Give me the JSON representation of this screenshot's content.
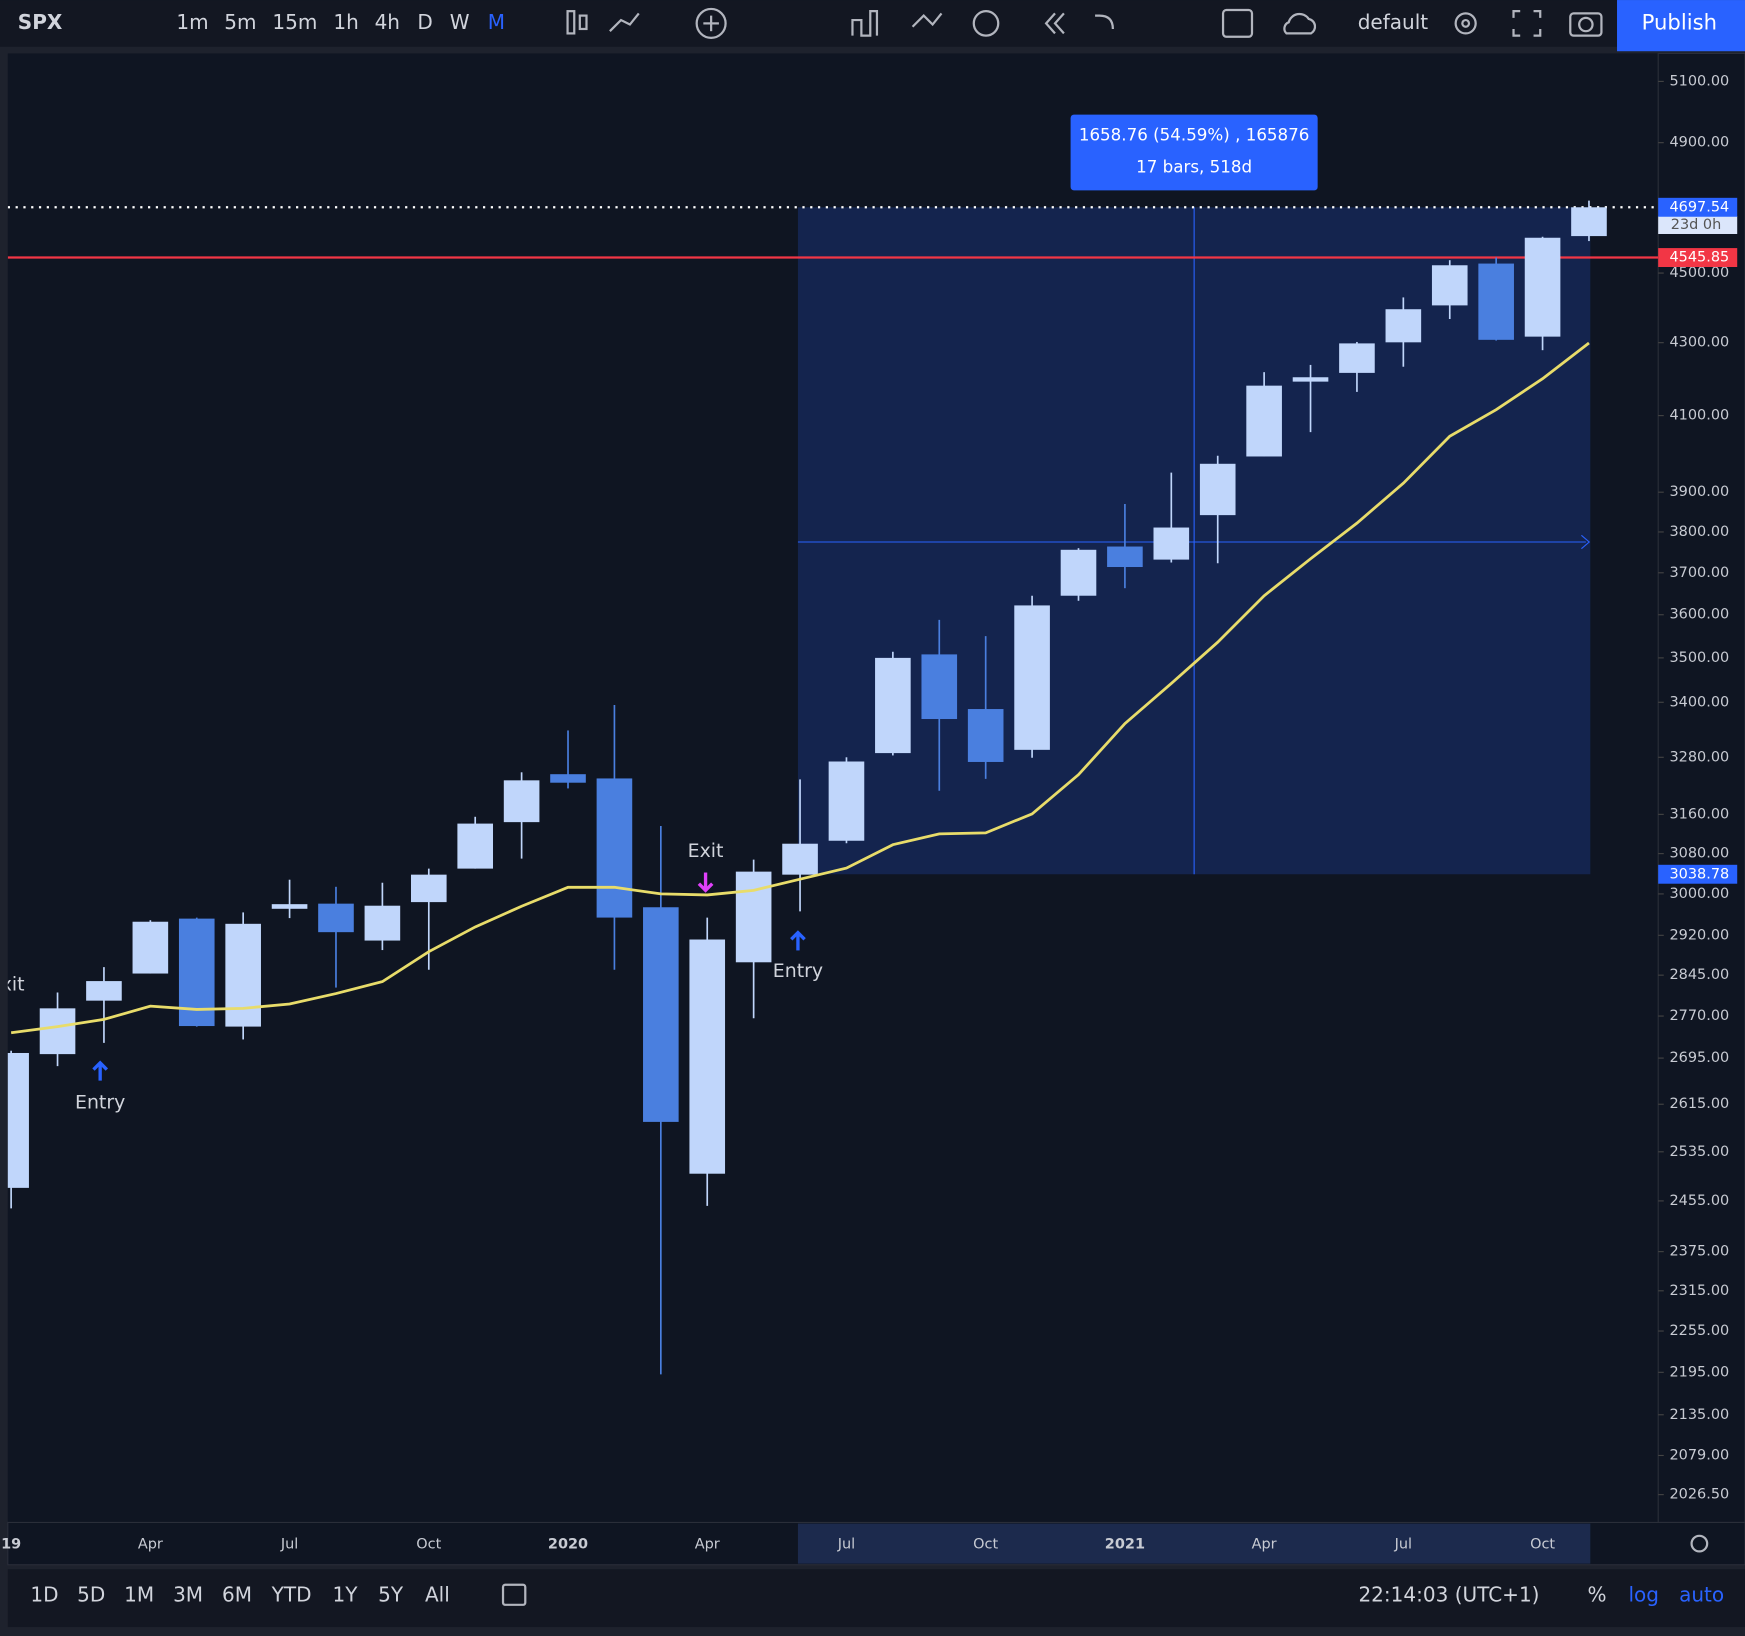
{
  "toolbar": {
    "symbol": "SPX",
    "intervals": [
      "1m",
      "5m",
      "15m",
      "1h",
      "4h",
      "D",
      "W",
      "M"
    ],
    "layout": "default",
    "publish": "Publish"
  },
  "bottom_bar": {
    "ranges": [
      "1D",
      "5D",
      "1M",
      "3M",
      "6M",
      "YTD",
      "1Y",
      "5Y",
      "All"
    ],
    "clock": "22:14:03 (UTC+1)",
    "percent": "%",
    "log": "log",
    "auto": "auto"
  },
  "chart_data": {
    "type": "candlestick",
    "log_scale": true,
    "up_color": "#c0d6fb",
    "down_color": "#4a7fdf",
    "categories": [
      "19",
      null,
      null,
      "Apr",
      null,
      null,
      "Jul",
      null,
      null,
      "Oct",
      null,
      null,
      "2020",
      null,
      null,
      "Apr",
      null,
      null,
      "Jul",
      null,
      null,
      "Oct",
      null,
      null,
      "2021",
      null,
      null,
      "Apr",
      null,
      null,
      "Jul",
      null,
      null,
      "Oct",
      null
    ],
    "open": [
      2476,
      2702,
      2798,
      2848,
      2952,
      2751,
      2971,
      2981,
      2910,
      2984,
      3050,
      3144,
      3244,
      3235,
      2974,
      2499,
      2869,
      3038,
      3106,
      3289,
      3508,
      3385,
      3296,
      3645,
      3764,
      3732,
      3842,
      3992,
      4192,
      4216,
      4301,
      4406,
      4528,
      4317,
      4610
    ],
    "high": [
      2708,
      2813,
      2860,
      2949,
      2954,
      2964,
      3028,
      3014,
      3022,
      3050,
      3155,
      3248,
      3338,
      3394,
      3136,
      2954,
      3068,
      3233,
      3280,
      3514,
      3588,
      3550,
      3645,
      3760,
      3870,
      3950,
      3994,
      4218,
      4238,
      4302,
      4429,
      4538,
      4546,
      4608,
      4718
    ],
    "low": [
      2443,
      2681,
      2722,
      2848,
      2751,
      2728,
      2953,
      2822,
      2892,
      2855,
      3050,
      3070,
      3214,
      2855,
      2192,
      2447,
      2766,
      2966,
      3101,
      3284,
      3209,
      3234,
      3279,
      3633,
      3663,
      3725,
      3723,
      3992,
      4056,
      4164,
      4233,
      4367,
      4306,
      4279,
      4595
    ],
    "close": [
      2704,
      2784,
      2834,
      2946,
      2752,
      2942,
      2980,
      2926,
      2977,
      3038,
      3141,
      3231,
      3226,
      2954,
      2585,
      2912,
      3044,
      3100,
      3271,
      3500,
      3363,
      3270,
      3622,
      3756,
      3714,
      3811,
      3973,
      4181,
      4204,
      4298,
      4395,
      4523,
      4308,
      4605,
      4697.54
    ],
    "ma": {
      "color": "#e8dc6a",
      "values": [
        2740,
        2751,
        2764,
        2788,
        2782,
        2784,
        2792,
        2811,
        2833,
        2889,
        2936,
        2976,
        3013,
        3013,
        3000,
        2998,
        3007,
        3029,
        3051,
        3098,
        3120,
        3122,
        3161,
        3243,
        3353,
        3442,
        3536,
        3645,
        3734,
        3822,
        3923,
        4045,
        4116,
        4200,
        4299
      ]
    },
    "ylim": [
      1990,
      5194
    ],
    "yticks": [
      {
        "value": 5100,
        "label": "5100.00"
      },
      {
        "value": 4900,
        "label": "4900.00"
      },
      {
        "value": 4500,
        "label": "4500.00"
      },
      {
        "value": 4300,
        "label": "4300.00"
      },
      {
        "value": 4100,
        "label": "4100.00"
      },
      {
        "value": 3900,
        "label": "3900.00"
      },
      {
        "value": 3800,
        "label": "3800.00"
      },
      {
        "value": 3700,
        "label": "3700.00"
      },
      {
        "value": 3600,
        "label": "3600.00"
      },
      {
        "value": 3500,
        "label": "3500.00"
      },
      {
        "value": 3400,
        "label": "3400.00"
      },
      {
        "value": 3280,
        "label": "3280.00"
      },
      {
        "value": 3160,
        "label": "3160.00"
      },
      {
        "value": 3080,
        "label": "3080.00"
      },
      {
        "value": 3000,
        "label": "3000.00"
      },
      {
        "value": 2920,
        "label": "2920.00"
      },
      {
        "value": 2845,
        "label": "2845.00"
      },
      {
        "value": 2770,
        "label": "2770.00"
      },
      {
        "value": 2695,
        "label": "2695.00"
      },
      {
        "value": 2615,
        "label": "2615.00"
      },
      {
        "value": 2535,
        "label": "2535.00"
      },
      {
        "value": 2455,
        "label": "2455.00"
      },
      {
        "value": 2375,
        "label": "2375.00"
      },
      {
        "value": 2315,
        "label": "2315.00"
      },
      {
        "value": 2255,
        "label": "2255.00"
      },
      {
        "value": 2195,
        "label": "2195.00"
      },
      {
        "value": 2135,
        "label": "2135.00"
      },
      {
        "value": 2079,
        "label": "2079.00"
      },
      {
        "value": 2026.5,
        "label": "2026.50"
      }
    ],
    "levels": {
      "current": 4697.54,
      "countdown": "23d 0h",
      "red_line": 4545.85,
      "range_low": 3038.78
    },
    "measure": {
      "line1": "1658.76 (54.59%) , 165876",
      "line2": "17 bars, 518d"
    },
    "annotations": [
      "Exit",
      "Entry",
      "Exit",
      "Entry"
    ]
  }
}
